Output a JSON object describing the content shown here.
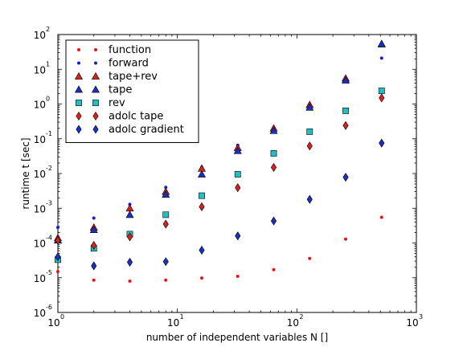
{
  "chart_data": {
    "type": "scatter",
    "xlabel": "number of independent variables N []",
    "ylabel": "runtime t [sec]",
    "xscale": "log",
    "yscale": "log",
    "xlim": [
      1,
      1000
    ],
    "ylim": [
      1e-06,
      100
    ],
    "x_ticks": [
      {
        "base": "10",
        "exp": "0"
      },
      {
        "base": "10",
        "exp": "1"
      },
      {
        "base": "10",
        "exp": "2"
      },
      {
        "base": "10",
        "exp": "3"
      }
    ],
    "y_ticks": [
      {
        "base": "10",
        "exp": "-6"
      },
      {
        "base": "10",
        "exp": "-5"
      },
      {
        "base": "10",
        "exp": "-4"
      },
      {
        "base": "10",
        "exp": "-3"
      },
      {
        "base": "10",
        "exp": "-2"
      },
      {
        "base": "10",
        "exp": "-1"
      },
      {
        "base": "10",
        "exp": "0"
      },
      {
        "base": "10",
        "exp": "1"
      },
      {
        "base": "10",
        "exp": "2"
      }
    ],
    "grid": false,
    "legend_position": "top-left",
    "x": [
      1,
      2,
      4,
      8,
      16,
      32,
      64,
      128,
      256,
      512
    ],
    "series": [
      {
        "name": "function",
        "marker": "dot",
        "color": "#e8141c",
        "values": [
          1.5e-05,
          8.5e-06,
          8e-06,
          8.5e-06,
          9.8e-06,
          1.1e-05,
          1.7e-05,
          3.6e-05,
          0.00013,
          0.00055
        ]
      },
      {
        "name": "forward",
        "marker": "dot",
        "color": "#1a1adb",
        "values": [
          0.00028,
          0.00052,
          0.0013,
          0.004,
          0.015,
          0.065,
          0.21,
          1.0,
          5.6,
          21
        ]
      },
      {
        "name": "tape+rev",
        "marker": "triangle",
        "color": "#d6231c",
        "values": [
          0.00014,
          0.00028,
          0.001,
          0.003,
          0.014,
          0.055,
          0.2,
          0.95,
          5.5,
          53
        ]
      },
      {
        "name": "tape",
        "marker": "triangle",
        "color": "#1a2fc4",
        "values": [
          0.00012,
          0.00024,
          0.00065,
          0.0025,
          0.0095,
          0.045,
          0.17,
          0.8,
          4.8,
          54
        ]
      },
      {
        "name": "rev",
        "marker": "square",
        "color": "#25bcc4",
        "values": [
          3.3e-05,
          7e-05,
          0.00018,
          0.00065,
          0.0023,
          0.0095,
          0.038,
          0.16,
          0.64,
          2.4
        ]
      },
      {
        "name": "adolc tape",
        "marker": "diamond",
        "color": "#d6231c",
        "values": [
          0.00012,
          8.5e-05,
          0.00015,
          0.00035,
          0.0011,
          0.0039,
          0.015,
          0.062,
          0.24,
          1.5
        ]
      },
      {
        "name": "adolc gradient",
        "marker": "diamond",
        "color": "#1a2fc4",
        "values": [
          4e-05,
          2.2e-05,
          2.8e-05,
          2.9e-05,
          6.2e-05,
          0.00016,
          0.00043,
          0.0018,
          0.0078,
          0.075
        ]
      }
    ]
  }
}
